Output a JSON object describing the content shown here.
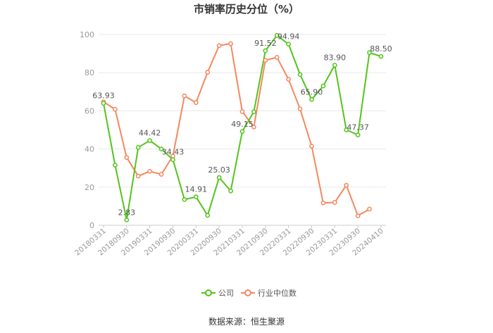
{
  "chart_data": {
    "type": "line",
    "title": "市销率历史分位（%）",
    "ylim": [
      0,
      100
    ],
    "yticks": [
      0,
      20,
      40,
      60,
      80,
      100
    ],
    "grid": true,
    "legend_position": "bottom",
    "x": [
      "20180331",
      "20180630",
      "20180930",
      "20181231",
      "20190331",
      "20190630",
      "20190930",
      "20191231",
      "20200331",
      "20200630",
      "20200930",
      "20201231",
      "20210331",
      "20210630",
      "20210930",
      "20211231",
      "20220331",
      "20220630",
      "20220930",
      "20221231",
      "20230331",
      "20230630",
      "20230930",
      "20231231",
      "20240410"
    ],
    "xticks": [
      "20180331",
      "20180930",
      "20190331",
      "20190930",
      "20200331",
      "20200930",
      "20210331",
      "20210930",
      "20220331",
      "20220930",
      "20230331",
      "20230930",
      "20240410"
    ],
    "series": [
      {
        "name": "公司",
        "color": "#52c41a",
        "values": [
          63.93,
          31.5,
          2.83,
          40.8,
          44.42,
          40.0,
          34.43,
          13.5,
          14.91,
          5.2,
          25.03,
          18.0,
          49.15,
          59.5,
          91.52,
          99.5,
          94.94,
          79.0,
          65.9,
          73.0,
          83.9,
          50.0,
          47.37,
          90.5,
          88.5
        ],
        "labels": {
          "0": "63.93",
          "2": "2.83",
          "4": "44.42",
          "6": "34.43",
          "8": "14.91",
          "10": "25.03",
          "12": "49.15",
          "14": "91.52",
          "16": "94.94",
          "18": "65.90",
          "20": "83.90",
          "22": "47.37",
          "24": "88.50"
        }
      },
      {
        "name": "行业中位数",
        "color": "#f5875e",
        "values": [
          64.7,
          60.8,
          35.5,
          25.8,
          28.3,
          26.7,
          36.3,
          67.8,
          64.3,
          80.2,
          94.2,
          95.2,
          59.6,
          51.5,
          86.5,
          88.0,
          76.5,
          61.0,
          41.5,
          11.7,
          12.0,
          21.0,
          5.0,
          8.5,
          null
        ]
      }
    ],
    "source": "数据来源：恒生聚源"
  }
}
